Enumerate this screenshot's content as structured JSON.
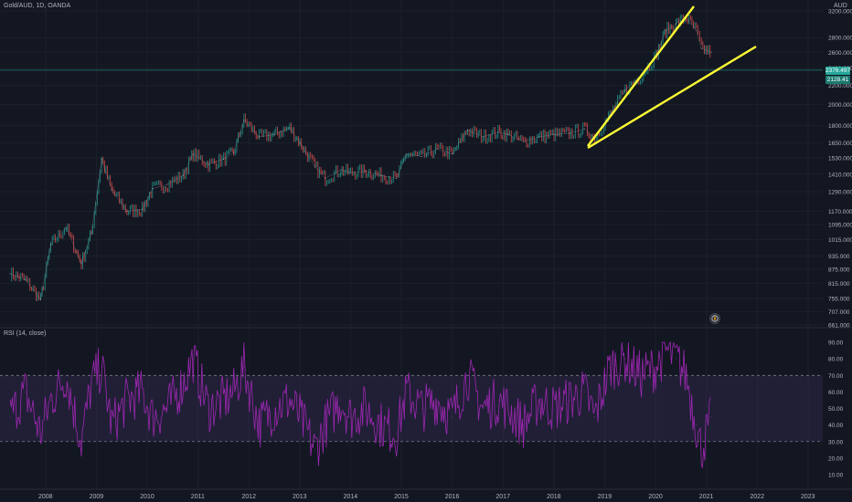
{
  "header": {
    "symbol_title": "Gold/AUD, 1D, OANDA",
    "currency": "AUD"
  },
  "rsi": {
    "title": "RSI (14, close)"
  },
  "price_tags": {
    "current_price": "2376.497",
    "secondary_price": "2128.41"
  },
  "colors": {
    "background": "#131722",
    "trendline": "#ffff33",
    "rsi_line": "#9c27b0",
    "rsi_band": "#7e57c2",
    "price_line": "#26a69a",
    "candle_up": "#26a69a",
    "candle_down": "#ef5350"
  },
  "icons": {
    "auto_scale": "compass-icon"
  },
  "chart_data": [
    {
      "type": "line",
      "title": "Gold/AUD, 1D, OANDA",
      "ylabel": "AUD",
      "log_scale": true,
      "grid": true,
      "ylim": [
        661,
        3200
      ],
      "y_ticks": [
        "3200.000",
        "2800.000",
        "2600.000",
        "2400.000",
        "2200.000",
        "2000.000",
        "1800.000",
        "1650.000",
        "1530.000",
        "1410.000",
        "1290.000",
        "1170.000",
        "1095.000",
        "1015.000",
        "935.000",
        "875.000",
        "815.000",
        "755.000",
        "707.000",
        "661.000"
      ],
      "x_ticks": [
        "2008",
        "2009",
        "2010",
        "2011",
        "2012",
        "2013",
        "2014",
        "2015",
        "2016",
        "2017",
        "2018",
        "2019",
        "2020",
        "2021",
        "2022",
        "2023"
      ],
      "series": [
        {
          "x": [
            2007.3,
            2007.6,
            2007.9,
            2008.1,
            2008.4,
            2008.7,
            2008.9,
            2009.1,
            2009.3,
            2009.6,
            2009.9,
            2010.1,
            2010.4,
            2010.7,
            2010.9,
            2011.2,
            2011.5,
            2011.7,
            2011.9,
            2012.2,
            2012.5,
            2012.8,
            2013.0,
            2013.3,
            2013.5,
            2013.8,
            2014.0,
            2014.3,
            2014.6,
            2014.9,
            2015.1,
            2015.4,
            2015.7,
            2016.0,
            2016.3,
            2016.6,
            2016.9,
            2017.1,
            2017.4,
            2017.7,
            2018.0,
            2018.3,
            2018.6,
            2018.8,
            2019.1,
            2019.4,
            2019.7,
            2020.0,
            2020.2,
            2020.4,
            2020.6,
            2020.8,
            2020.9,
            2021.1
          ],
          "y": [
            855,
            830,
            750,
            990,
            1080,
            900,
            1050,
            1520,
            1300,
            1170,
            1180,
            1310,
            1340,
            1400,
            1560,
            1480,
            1520,
            1570,
            1850,
            1700,
            1720,
            1780,
            1650,
            1460,
            1380,
            1440,
            1420,
            1430,
            1400,
            1380,
            1560,
            1540,
            1600,
            1560,
            1760,
            1700,
            1740,
            1720,
            1660,
            1700,
            1720,
            1730,
            1770,
            1690,
            1900,
            2150,
            2300,
            2550,
            2900,
            3000,
            3100,
            2900,
            2650,
            2600
          ]
        }
      ]
    },
    {
      "type": "line",
      "title": "RSI (14, close)",
      "grid": false,
      "ylim": [
        10,
        95
      ],
      "y_ticks": [
        "90.00",
        "80.00",
        "70.00",
        "60.00",
        "50.00",
        "40.00",
        "30.00",
        "20.00",
        "10.00"
      ],
      "bands": {
        "upper": 70,
        "lower": 30
      },
      "series": [
        {
          "x": [
            2007.3,
            2007.6,
            2007.9,
            2008.1,
            2008.4,
            2008.7,
            2008.9,
            2009.1,
            2009.3,
            2009.6,
            2009.9,
            2010.1,
            2010.4,
            2010.7,
            2010.9,
            2011.2,
            2011.5,
            2011.7,
            2011.9,
            2012.2,
            2012.5,
            2012.8,
            2013.0,
            2013.3,
            2013.5,
            2013.8,
            2014.0,
            2014.3,
            2014.6,
            2014.9,
            2015.1,
            2015.4,
            2015.7,
            2016.0,
            2016.3,
            2016.6,
            2016.9,
            2017.1,
            2017.4,
            2017.7,
            2018.0,
            2018.3,
            2018.6,
            2018.8,
            2019.1,
            2019.4,
            2019.7,
            2020.0,
            2020.2,
            2020.4,
            2020.6,
            2020.8,
            2020.9,
            2021.1
          ],
          "y": [
            45,
            60,
            35,
            55,
            70,
            30,
            65,
            75,
            40,
            55,
            60,
            45,
            50,
            65,
            80,
            50,
            55,
            60,
            75,
            40,
            50,
            55,
            45,
            25,
            40,
            55,
            45,
            50,
            40,
            35,
            60,
            50,
            55,
            45,
            70,
            50,
            55,
            50,
            40,
            55,
            50,
            55,
            60,
            45,
            75,
            80,
            70,
            75,
            85,
            80,
            70,
            40,
            25,
            45
          ]
        }
      ]
    }
  ]
}
